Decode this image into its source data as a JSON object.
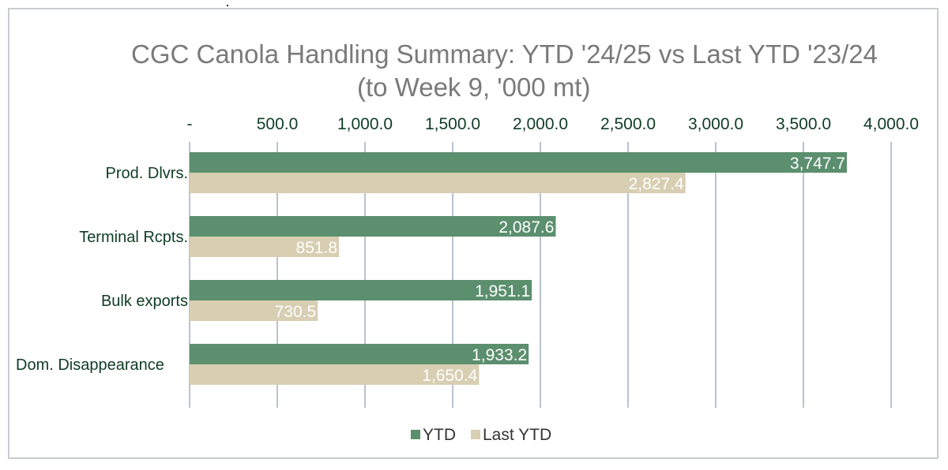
{
  "chart_data": {
    "type": "bar",
    "orientation": "horizontal",
    "title": "CGC Canola Handling Summary: YTD '24/25 vs Last YTD '23/24",
    "subtitle": "(to Week  9,  '000 mt)",
    "categories": [
      "Prod. Dlvrs.",
      "Terminal Rcpts.",
      "Bulk exports",
      "Dom. Disappearance"
    ],
    "series": [
      {
        "name": "YTD",
        "values": [
          3747.7,
          2087.6,
          1951.1,
          1933.2
        ],
        "labels": [
          "3,747.7",
          "2,087.6",
          "1,951.1",
          "1,933.2"
        ],
        "color": "#5b8f6e"
      },
      {
        "name": "Last YTD",
        "values": [
          2827.4,
          851.8,
          730.5,
          1650.4
        ],
        "labels": [
          "2,827.4",
          "851.8",
          "730.5",
          "1,650.4"
        ],
        "color": "#d8ceb2"
      }
    ],
    "xlim": [
      0,
      4000
    ],
    "ticks": [
      0,
      500,
      1000,
      1500,
      2000,
      2500,
      3000,
      3500,
      4000
    ],
    "tick_labels": [
      "-",
      "500.0",
      "1,000.0",
      "1,500.0",
      "2,000.0",
      "2,500.0",
      "3,000.0",
      "3,500.0",
      "4,000.0"
    ],
    "axis_position": "top",
    "grid": true,
    "legend": "bottom"
  }
}
